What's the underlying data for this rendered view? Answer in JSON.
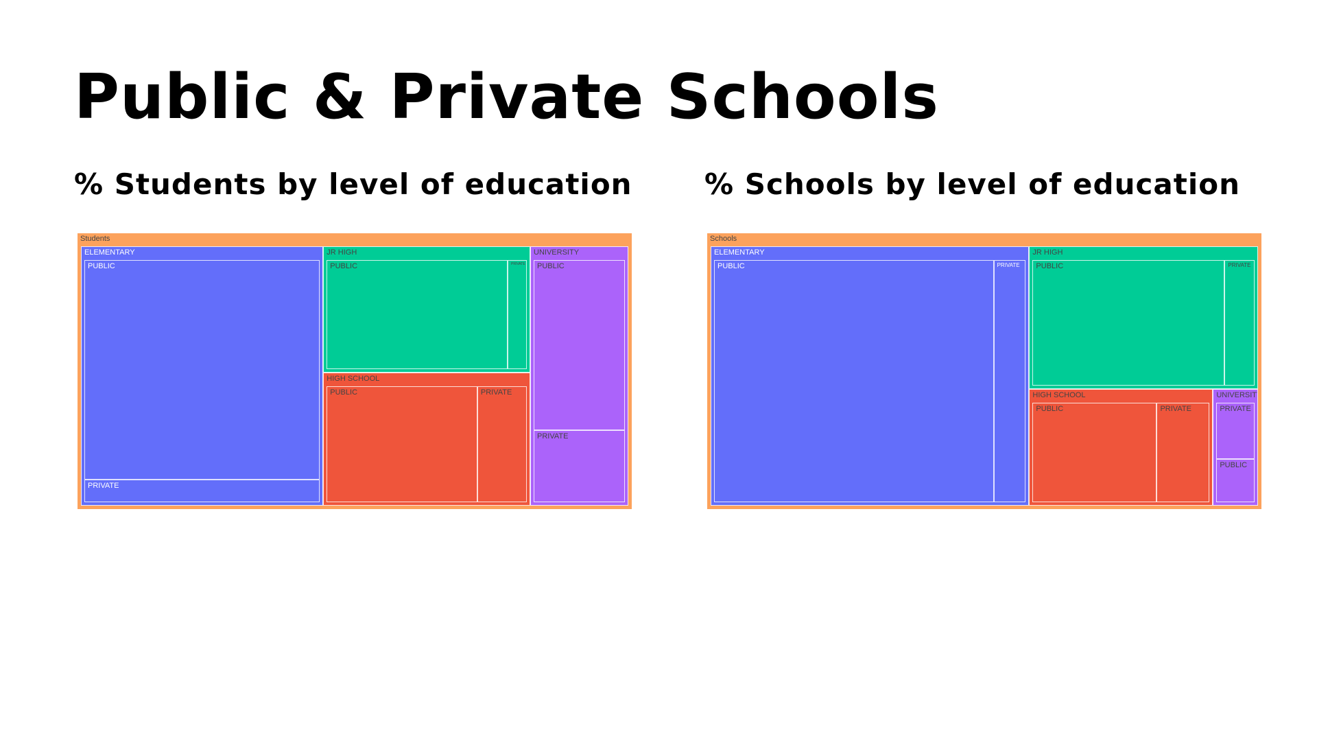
{
  "title": "Public & Private Schools",
  "subtitles": {
    "left": "% Students by level of education",
    "right": "% Schools by level of education"
  },
  "colors": {
    "root": "#fca25c",
    "elementary": "#636efa",
    "jr_high": "#00cc96",
    "high_school": "#ef553b",
    "university": "#ab63fa"
  },
  "chart_data": [
    {
      "type": "treemap",
      "root": "Students",
      "children": [
        {
          "label": "ELEMENTARY",
          "color": "#636efa",
          "children": [
            {
              "label": "PUBLIC",
              "value": 38.5
            },
            {
              "label": "PRIVATE",
              "value": 4.0
            }
          ]
        },
        {
          "label": "JR HIGH",
          "color": "#00cc96",
          "children": [
            {
              "label": "PUBLIC",
              "value": 16.0
            },
            {
              "label": "PRIVATE",
              "value": 1.7
            }
          ]
        },
        {
          "label": "HIGH SCHOOL",
          "color": "#ef553b",
          "children": [
            {
              "label": "PUBLIC",
              "value": 14.0
            },
            {
              "label": "PRIVATE",
              "value": 4.6
            }
          ]
        },
        {
          "label": "UNIVERSITY",
          "color": "#ab63fa",
          "children": [
            {
              "label": "PUBLIC",
              "value": 12.1
            },
            {
              "label": "PRIVATE",
              "value": 5.1
            }
          ]
        }
      ]
    },
    {
      "type": "treemap",
      "root": "Schools",
      "children": [
        {
          "label": "ELEMENTARY",
          "color": "#636efa",
          "children": [
            {
              "label": "PUBLIC",
              "value": 52.2
            },
            {
              "label": "PRIVATE",
              "value": 6.0
            }
          ]
        },
        {
          "label": "JR HIGH",
          "color": "#00cc96",
          "children": [
            {
              "label": "PUBLIC",
              "value": 19.9
            },
            {
              "label": "PRIVATE",
              "value": 3.1
            }
          ]
        },
        {
          "label": "HIGH SCHOOL",
          "color": "#ef553b",
          "children": [
            {
              "label": "PUBLIC",
              "value": 10.6
            },
            {
              "label": "PRIVATE",
              "value": 4.5
            }
          ]
        },
        {
          "label": "UNIVERSITY",
          "color": "#ab63fa",
          "children": [
            {
              "label": "PRIVATE",
              "value": 2.1
            },
            {
              "label": "PUBLIC",
              "value": 1.6
            }
          ]
        }
      ]
    }
  ]
}
